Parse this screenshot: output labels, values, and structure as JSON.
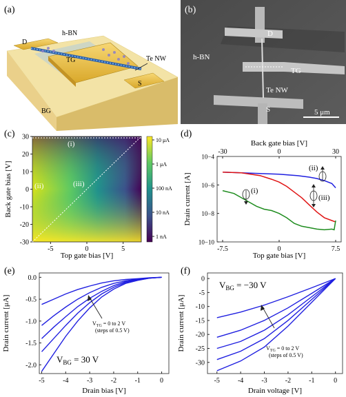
{
  "panels": {
    "a": {
      "label": "(a)",
      "texts": {
        "hbn": "h-BN",
        "d": "D",
        "tg": "TG",
        "tenw": "Te NW",
        "s": "S",
        "bg": "BG"
      }
    },
    "b": {
      "label": "(b)",
      "texts": {
        "d": "D",
        "hbn": "h-BN",
        "tg": "TG",
        "tenw": "Te NW",
        "s": "S",
        "scale": "5 μm"
      }
    },
    "c": {
      "label": "(c)",
      "annotations": [
        "(i)",
        "(ii)",
        "(iii)"
      ],
      "colorbar_ticks": [
        "10 μA",
        "1 μA",
        "100 nA",
        "10 nA",
        "1 nA"
      ]
    },
    "d": {
      "label": "(d)",
      "annotations": [
        "(i)",
        "(ii)",
        "(iii)"
      ]
    },
    "e": {
      "label": "(e)",
      "note_line1": "V",
      "note_sub": "TG",
      "note_rest": " = 0 to 2 V",
      "note_line2": "(steps of 0.5 V)",
      "condition_main": "V",
      "condition_sub": "BG",
      "condition_rest": " = 30 V"
    },
    "f": {
      "label": "(f)",
      "note_line1": "V",
      "note_sub": "TG",
      "note_rest": " = 0 to 2 V",
      "note_line2": "(steps of 0.5 V)",
      "condition_main": "V",
      "condition_sub": "BG",
      "condition_rest": " = −30 V"
    }
  },
  "chart_data": [
    {
      "id": "c",
      "type": "heatmap",
      "xlabel": "Top gate bias [V]",
      "ylabel": "Back gate bias [V]",
      "xticks": [
        -5,
        0,
        5
      ],
      "yticks": [
        -30,
        -20,
        -10,
        0,
        10,
        20,
        30
      ],
      "xlim": [
        -7.5,
        7.5
      ],
      "ylim": [
        -30,
        30
      ],
      "colorbar_ticks": [
        "10 μA",
        "1 μA",
        "100 nA",
        "10 nA",
        "1 nA"
      ],
      "colormap": "viridis"
    },
    {
      "id": "d",
      "type": "line",
      "xlabel": "Top gate bias [V]",
      "x2label": "Back gate bias [V]",
      "ylabel": "Drain current [A]",
      "xticks": [
        -7.5,
        0,
        7.5
      ],
      "x2ticks": [
        -30,
        0,
        30
      ],
      "yticks": [
        "10−4",
        "10−6",
        "10−8",
        "10−10"
      ],
      "ylog": true,
      "xlim": [
        -7.5,
        7.5
      ],
      "ylim_exp": [
        -10,
        -4
      ],
      "series": [
        {
          "color": "#1f1fe0",
          "x": [
            -7.5,
            -5,
            -2.5,
            0,
            2.5,
            4,
            5,
            6,
            7,
            7.5
          ],
          "y_exp": [
            -5.1,
            -5.15,
            -5.2,
            -5.25,
            -5.35,
            -5.45,
            -5.55,
            -5.7,
            -5.9,
            -6.2
          ]
        },
        {
          "color": "#e01414",
          "x": [
            -7.5,
            -5,
            -2.5,
            -1,
            0,
            1,
            2,
            3,
            4,
            5,
            6,
            7,
            7.5
          ],
          "y_exp": [
            -5.1,
            -5.15,
            -5.35,
            -5.6,
            -5.8,
            -6.1,
            -6.5,
            -6.9,
            -7.4,
            -7.9,
            -8.3,
            -8.5,
            -8.6
          ]
        },
        {
          "color": "#1e8c1e",
          "x": [
            -7.5,
            -6,
            -5,
            -4,
            -3,
            -2,
            -1,
            0,
            1,
            2,
            3,
            4,
            5,
            6,
            7,
            7.3,
            7.5
          ],
          "y_exp": [
            -6.4,
            -6.6,
            -6.9,
            -7.2,
            -7.5,
            -7.7,
            -7.8,
            -8.0,
            -8.3,
            -8.7,
            -8.9,
            -9.0,
            -9.1,
            -9.15,
            -9.1,
            -9.15,
            -8.5
          ]
        }
      ]
    },
    {
      "id": "e",
      "type": "line",
      "xlabel": "Drain bias [V]",
      "ylabel": "Drain current [μA]",
      "xticks": [
        -5,
        -4,
        -3,
        -2,
        -1,
        0
      ],
      "yticks": [
        "0.0",
        "-0.5",
        "-1.0",
        "-1.5",
        "-2.0"
      ],
      "xlim": [
        -5.1,
        0.3
      ],
      "ylim": [
        -2.2,
        0.1
      ],
      "series": [
        {
          "x": [
            -5,
            -4.5,
            -4,
            -3.5,
            -3,
            -2.5,
            -2,
            -1.5,
            -1,
            -0.5,
            0
          ],
          "y": [
            -0.62,
            -0.5,
            -0.38,
            -0.28,
            -0.2,
            -0.13,
            -0.08,
            -0.05,
            -0.03,
            -0.01,
            0
          ]
        },
        {
          "x": [
            -5,
            -4.5,
            -4,
            -3.5,
            -3,
            -2.5,
            -2,
            -1.5,
            -1,
            -0.5,
            0
          ],
          "y": [
            -1.1,
            -0.88,
            -0.68,
            -0.5,
            -0.35,
            -0.23,
            -0.14,
            -0.08,
            -0.04,
            -0.015,
            0
          ]
        },
        {
          "x": [
            -5,
            -4.5,
            -4,
            -3.5,
            -3,
            -2.5,
            -2,
            -1.5,
            -1,
            -0.5,
            0
          ],
          "y": [
            -1.4,
            -1.14,
            -0.9,
            -0.67,
            -0.48,
            -0.32,
            -0.19,
            -0.1,
            -0.05,
            -0.02,
            0
          ]
        },
        {
          "x": [
            -5,
            -4.5,
            -4,
            -3.5,
            -3,
            -2.5,
            -2,
            -1.5,
            -1,
            -0.5,
            0
          ],
          "y": [
            -1.7,
            -1.4,
            -1.1,
            -0.82,
            -0.58,
            -0.38,
            -0.23,
            -0.12,
            -0.06,
            -0.02,
            0
          ]
        },
        {
          "x": [
            -5,
            -4.5,
            -4,
            -3.5,
            -3,
            -2.5,
            -2,
            -1.5,
            -1,
            -0.5,
            0
          ],
          "y": [
            -2.15,
            -1.75,
            -1.35,
            -1.0,
            -0.7,
            -0.45,
            -0.27,
            -0.14,
            -0.07,
            -0.02,
            0
          ]
        }
      ]
    },
    {
      "id": "f",
      "type": "line",
      "xlabel": "Drain voltage [V]",
      "ylabel": "Drain current [μA]",
      "xticks": [
        -5,
        -4,
        -3,
        -2,
        -1,
        0
      ],
      "yticks": [
        0,
        -5,
        -10,
        -15,
        -20,
        -25,
        -30
      ],
      "xlim": [
        -5.4,
        0.3
      ],
      "ylim": [
        -34,
        2
      ],
      "series": [
        {
          "x": [
            -5,
            -4,
            -3,
            -2,
            -1,
            0
          ],
          "y": [
            -14,
            -12,
            -9.5,
            -6.5,
            -3.3,
            0
          ]
        },
        {
          "x": [
            -5,
            -4,
            -3,
            -2,
            -1,
            0
          ],
          "y": [
            -21,
            -18.5,
            -15,
            -10.5,
            -5.3,
            0
          ]
        },
        {
          "x": [
            -5,
            -4,
            -3,
            -2,
            -1,
            0
          ],
          "y": [
            -25,
            -22.5,
            -18.5,
            -13,
            -6.5,
            0
          ]
        },
        {
          "x": [
            -5,
            -4,
            -3,
            -2,
            -1,
            0
          ],
          "y": [
            -29,
            -26,
            -21.5,
            -15,
            -7.5,
            0
          ]
        },
        {
          "x": [
            -5,
            -4,
            -3,
            -2,
            -1,
            0
          ],
          "y": [
            -33,
            -29.5,
            -24.5,
            -17,
            -8.5,
            0
          ]
        }
      ]
    }
  ]
}
